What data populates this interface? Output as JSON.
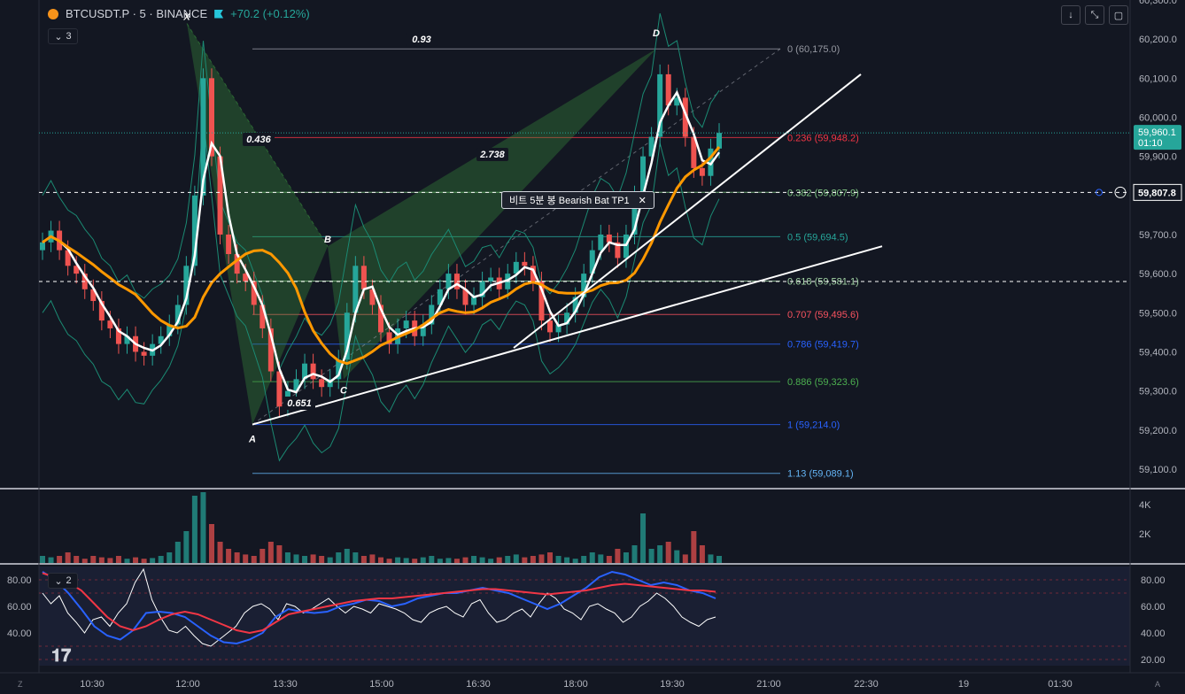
{
  "header": {
    "symbol": "BTCUSDT.P · 5 · BINANCE",
    "change": "+70.2 (+0.12%)"
  },
  "pane_collapse": {
    "main": "3",
    "rsi": "2"
  },
  "toolbar": {
    "down_icon": "↓",
    "collapse_icon": "⤡",
    "screen_icon": "▢"
  },
  "tooltip": {
    "text": "비트 5분 봉 Bearish Bat TP1",
    "close": "✕"
  },
  "colors": {
    "up": "#26a69a",
    "down": "#ef5350",
    "ma_white": "#ffffff",
    "ma_orange": "#ff9800",
    "bollinger": "#1b8a73",
    "rsi_blue": "#2962ff",
    "rsi_red": "#f23645"
  },
  "chart_data": {
    "type": "candlestick",
    "price_axis": {
      "range": [
        59050,
        60300
      ],
      "ticks": [
        "60,300.0",
        "60,200.0",
        "60,100.0",
        "60,000.0",
        "59,900.0",
        "59,800.0",
        "59,700.0",
        "59,600.0",
        "59,500.0",
        "59,400.0",
        "59,300.0",
        "59,200.0",
        "59,100.0"
      ]
    },
    "time_axis": {
      "labels": [
        "10:30",
        "12:00",
        "13:30",
        "15:00",
        "16:30",
        "18:00",
        "19:30",
        "21:00",
        "22:30",
        "19",
        "01:30"
      ]
    },
    "current_price": {
      "value": 59960.1,
      "label": "59,960.1",
      "timer": "01:10"
    },
    "crosshair_price": {
      "value": 59807.8,
      "label": "59,807.8"
    },
    "fib_levels": [
      {
        "ratio": "0",
        "label": "0 (60,175.0)",
        "price": 60175.0,
        "color": "#9598a1"
      },
      {
        "ratio": "0.236",
        "label": "0.236 (59,948.2)",
        "price": 59948.2,
        "color": "#f23645"
      },
      {
        "ratio": "0.382",
        "label": "0.382 (59,807.9)",
        "price": 59807.9,
        "color": "#81c784"
      },
      {
        "ratio": "0.5",
        "label": "0.5 (59,694.5)",
        "price": 59694.5,
        "color": "#26a69a"
      },
      {
        "ratio": "0.618",
        "label": "0.618 (59,581.1)",
        "price": 59581.1,
        "color": "#a5d6a7"
      },
      {
        "ratio": "0.707",
        "label": "0.707 (59,495.6)",
        "price": 59495.6,
        "color": "#f7525f"
      },
      {
        "ratio": "0.786",
        "label": "0.786 (59,419.7)",
        "price": 59419.7,
        "color": "#2962ff"
      },
      {
        "ratio": "0.886",
        "label": "0.886 (59,323.6)",
        "price": 59323.6,
        "color": "#4caf50"
      },
      {
        "ratio": "1",
        "label": "1 (59,214.0)",
        "price": 59214.0,
        "color": "#2962ff"
      },
      {
        "ratio": "1.13",
        "label": "1.13 (59,089.1)",
        "price": 59089.1,
        "color": "#64b5f6"
      }
    ],
    "pattern": {
      "points": [
        {
          "name": "X",
          "price": 60240
        },
        {
          "name": "A",
          "price": 59214
        },
        {
          "name": "B",
          "price": 59670
        },
        {
          "name": "C",
          "price": 59320
        },
        {
          "name": "D",
          "price": 60175
        }
      ],
      "ratios": [
        {
          "label": "0.436"
        },
        {
          "label": "0.651"
        },
        {
          "label": "2.738"
        },
        {
          "label": "0.93"
        }
      ]
    },
    "volume_axis": {
      "ticks": [
        "4K",
        "2K"
      ]
    },
    "rsi_axis_left": {
      "ticks": [
        "80.00",
        "60.00",
        "40.00"
      ]
    },
    "rsi_axis_right": {
      "ticks": [
        "80.00",
        "60.00",
        "40.00",
        "20.00"
      ]
    },
    "candles": [
      59680,
      59710,
      59660,
      59620,
      59600,
      59560,
      59530,
      59480,
      59460,
      59420,
      59440,
      59400,
      59390,
      59420,
      59440,
      59470,
      59520,
      59620,
      59800,
      60100,
      59900,
      59700,
      59650,
      59600,
      59580,
      59520,
      59460,
      59350,
      59260,
      59300,
      59330,
      59370,
      59330,
      59310,
      59330,
      59380,
      59500,
      59620,
      59560,
      59520,
      59450,
      59420,
      59460,
      59480,
      59440,
      59470,
      59520,
      59560,
      59600,
      59560,
      59520,
      59540,
      59580,
      59590,
      59560,
      59600,
      59630,
      59620,
      59580,
      59480,
      59450,
      59470,
      59500,
      59540,
      59600,
      59660,
      59700,
      59680,
      59640,
      59700,
      59800,
      59900,
      59950,
      60110,
      60030,
      60050,
      59950,
      59870,
      59850,
      59920,
      59960
    ],
    "volume_note": "relative volume levels 0-1",
    "volumes": [
      0.1,
      0.08,
      0.1,
      0.15,
      0.1,
      0.06,
      0.1,
      0.08,
      0.07,
      0.1,
      0.06,
      0.08,
      0.06,
      0.07,
      0.1,
      0.15,
      0.3,
      0.45,
      0.95,
      1.0,
      0.55,
      0.3,
      0.2,
      0.15,
      0.12,
      0.1,
      0.2,
      0.3,
      0.25,
      0.15,
      0.12,
      0.1,
      0.12,
      0.1,
      0.08,
      0.15,
      0.2,
      0.15,
      0.1,
      0.12,
      0.08,
      0.06,
      0.08,
      0.07,
      0.06,
      0.08,
      0.1,
      0.06,
      0.07,
      0.06,
      0.08,
      0.1,
      0.08,
      0.06,
      0.08,
      0.1,
      0.12,
      0.08,
      0.1,
      0.12,
      0.15,
      0.1,
      0.08,
      0.06,
      0.1,
      0.15,
      0.12,
      0.1,
      0.2,
      0.15,
      0.25,
      0.7,
      0.2,
      0.25,
      0.3,
      0.18,
      0.12,
      0.45,
      0.25,
      0.12,
      0.1
    ],
    "rsi_white": [
      70,
      62,
      68,
      55,
      48,
      40,
      50,
      52,
      45,
      55,
      62,
      78,
      88,
      65,
      52,
      42,
      40,
      45,
      38,
      32,
      30,
      35,
      40,
      45,
      55,
      60,
      62,
      58,
      50,
      62,
      60,
      55,
      58,
      62,
      66,
      60,
      55,
      60,
      58,
      55,
      62,
      60,
      58,
      55,
      50,
      48,
      55,
      58,
      60,
      55,
      52,
      62,
      65,
      55,
      48,
      50,
      55,
      58,
      52,
      62,
      70,
      66,
      58,
      55,
      50,
      60,
      62,
      58,
      55,
      48,
      52,
      60,
      64,
      70,
      66,
      60,
      52,
      48,
      45,
      50,
      52
    ],
    "rsi_blue": [
      86,
      80,
      70,
      58,
      45,
      38,
      35,
      42,
      55,
      56,
      55,
      52,
      45,
      38,
      33,
      32,
      35,
      40,
      52,
      58,
      56,
      55,
      56,
      60,
      62,
      65,
      64,
      60,
      62,
      66,
      68,
      70,
      70,
      72,
      74,
      72,
      70,
      66,
      62,
      58,
      62,
      68,
      74,
      82,
      86,
      84,
      80,
      76,
      78,
      76,
      72,
      70,
      66
    ],
    "rsi_red": [
      85,
      82,
      78,
      72,
      62,
      52,
      45,
      42,
      45,
      50,
      54,
      56,
      54,
      50,
      46,
      42,
      40,
      42,
      48,
      54,
      56,
      58,
      60,
      62,
      64,
      65,
      66,
      66,
      67,
      68,
      69,
      70,
      71,
      72,
      73,
      73,
      72,
      71,
      70,
      69,
      70,
      71,
      72,
      74,
      76,
      77,
      76,
      75,
      74,
      73,
      72,
      72,
      71
    ]
  }
}
